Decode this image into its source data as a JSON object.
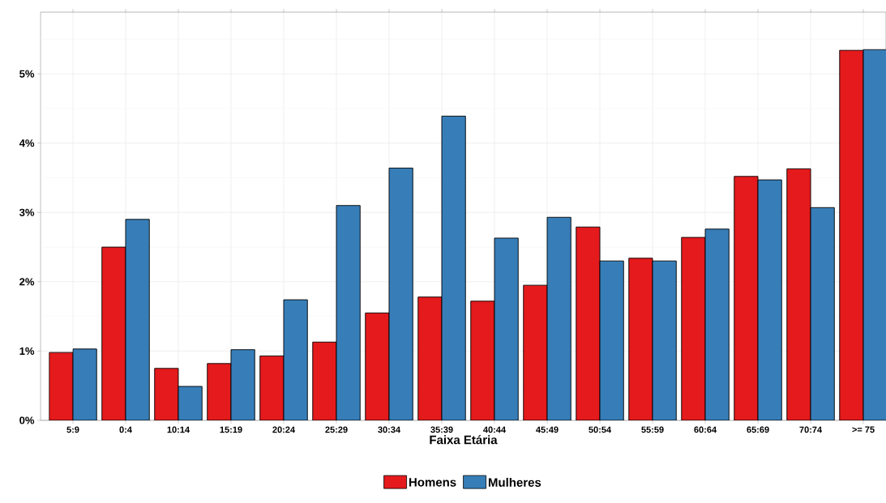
{
  "chart_data": {
    "type": "bar",
    "xlabel": "Faixa Etária",
    "categories": [
      "5:9",
      "0:4",
      "10:14",
      "15:19",
      "20:24",
      "25:29",
      "30:34",
      "35:39",
      "40:44",
      "45:49",
      "50:54",
      "55:59",
      "60:64",
      "65:69",
      "70:74",
      ">= 75"
    ],
    "series": [
      {
        "name": "Homens",
        "color": "#e41a1c",
        "values": [
          0.98,
          2.5,
          0.75,
          0.82,
          0.93,
          1.13,
          1.55,
          1.78,
          1.72,
          1.95,
          2.79,
          2.34,
          2.64,
          3.52,
          3.63,
          5.34
        ]
      },
      {
        "name": "Mulheres",
        "color": "#377eb8",
        "values": [
          1.03,
          2.9,
          0.49,
          1.02,
          1.74,
          3.1,
          3.64,
          4.39,
          2.63,
          2.93,
          2.3,
          2.3,
          2.76,
          3.47,
          3.07,
          5.35
        ]
      }
    ],
    "ylim": [
      0,
      5.89
    ],
    "yticks": [
      {
        "value": 0,
        "label": "0%"
      },
      {
        "value": 0.5,
        "label": null
      },
      {
        "value": 1,
        "label": "1%"
      },
      {
        "value": 1.5,
        "label": null
      },
      {
        "value": 2,
        "label": "2%"
      },
      {
        "value": 2.5,
        "label": null
      },
      {
        "value": 3,
        "label": "3%"
      },
      {
        "value": 3.5,
        "label": null
      },
      {
        "value": 4,
        "label": "4%"
      },
      {
        "value": 4.5,
        "label": null
      },
      {
        "value": 5,
        "label": "5%"
      },
      {
        "value": 5.5,
        "label": null
      }
    ],
    "grid": true,
    "legend": "bottom"
  }
}
